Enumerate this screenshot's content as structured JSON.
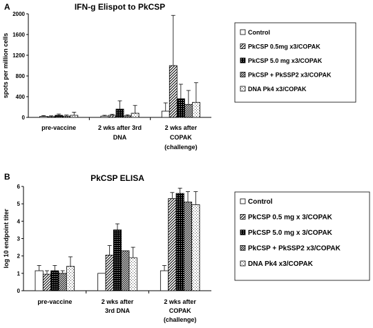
{
  "chart_data": [
    {
      "panel": "A",
      "type": "bar",
      "title": "IFN-g Elispot to PkCSP",
      "ylabel": "spots per million cells",
      "xlabel": "",
      "ylim": [
        0,
        2000
      ],
      "yticks": [
        0,
        400,
        800,
        1200,
        1600,
        2000
      ],
      "categories": [
        [
          "pre-vaccine"
        ],
        [
          "2 wks after 3rd",
          "DNA"
        ],
        [
          "2 wks after",
          "COPAK",
          "(challenge)"
        ]
      ],
      "series": [
        {
          "name": "Control",
          "values": [
            20,
            25,
            120
          ],
          "errors": [
            15,
            15,
            160
          ]
        },
        {
          "name": "PkCSP 0.5mg x3/COPAK",
          "values": [
            15,
            40,
            1000
          ],
          "errors": [
            15,
            20,
            970
          ]
        },
        {
          "name": "PkCSP 5.0 mg x3/COPAK",
          "values": [
            40,
            160,
            360
          ],
          "errors": [
            25,
            160,
            280
          ]
        },
        {
          "name": "PkCSP +  PkSSP2 x3/COPAK",
          "values": [
            25,
            30,
            250
          ],
          "errors": [
            20,
            20,
            270
          ]
        },
        {
          "name": "DNA Pk4 x3/COPAK",
          "values": [
            40,
            80,
            290
          ],
          "errors": [
            60,
            150,
            380
          ]
        }
      ],
      "grid": false,
      "legend_position": "right"
    },
    {
      "panel": "B",
      "type": "bar",
      "title": "PkCSP ELISA",
      "ylabel": "log 10 endpoint titer",
      "xlabel": "",
      "ylim": [
        0,
        6
      ],
      "yticks": [
        0,
        1,
        2,
        3,
        4,
        5,
        6
      ],
      "categories": [
        [
          "pre-vaccine"
        ],
        [
          "2 wks after",
          "3rd DNA"
        ],
        [
          "2 wks after",
          "COPAK",
          "(challenge)"
        ]
      ],
      "series": [
        {
          "name": "Control",
          "values": [
            1.15,
            1.0,
            1.15
          ],
          "errors": [
            0.3,
            0,
            0.3
          ]
        },
        {
          "name": "PkCSP 0.5 mg x 3/COPAK",
          "values": [
            0.95,
            2.05,
            5.3
          ],
          "errors": [
            0.2,
            0.55,
            0.35
          ]
        },
        {
          "name": "PkCSP 5.0 mg x 3/COPAK",
          "values": [
            1.15,
            3.5,
            5.6
          ],
          "errors": [
            0.3,
            0.35,
            0.3
          ]
        },
        {
          "name": "PkCSP + PkSSP2 x3/COPAK",
          "values": [
            1.0,
            2.3,
            5.1
          ],
          "errors": [
            0.15,
            0,
            0.6
          ]
        },
        {
          "name": "DNA Pk4 x3/COPAK",
          "values": [
            1.4,
            1.9,
            4.95
          ],
          "errors": [
            0.55,
            0.6,
            0.75
          ]
        }
      ],
      "grid": false,
      "legend_position": "right"
    }
  ]
}
